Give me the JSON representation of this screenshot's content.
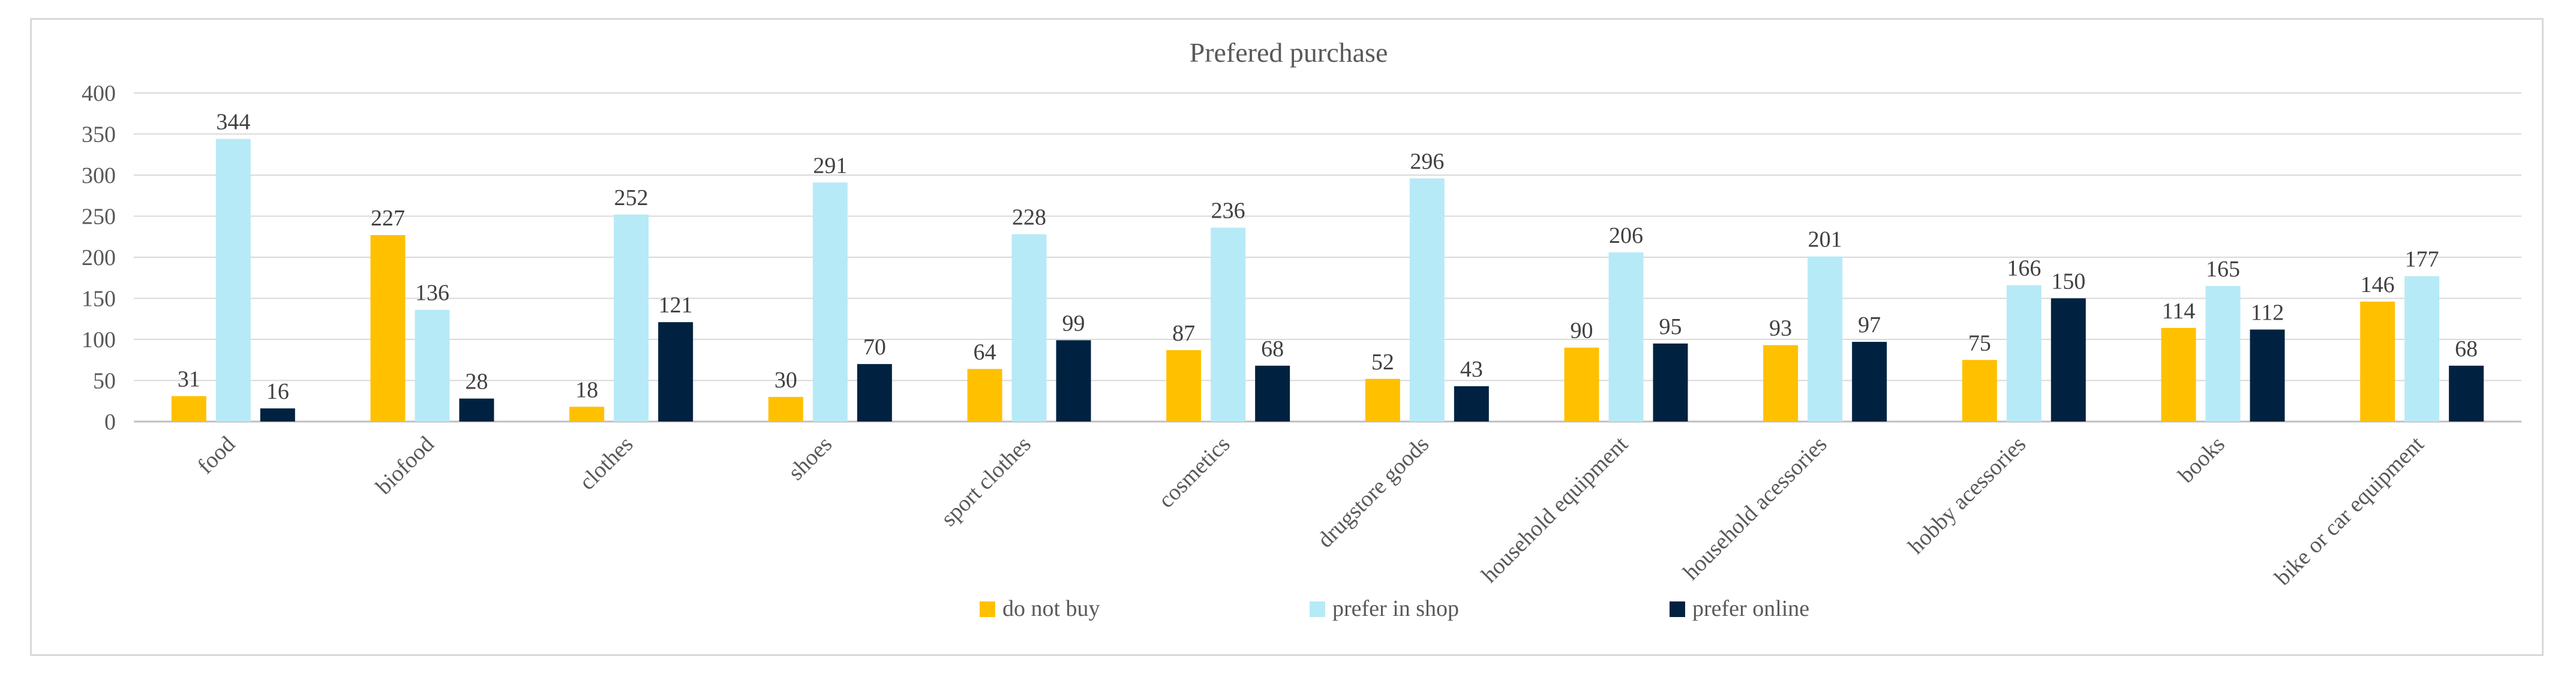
{
  "chart_data": {
    "type": "bar",
    "title": "Prefered purchase",
    "xlabel": "",
    "ylabel": "",
    "ylim": [
      0,
      400
    ],
    "yticks": [
      0,
      50,
      100,
      150,
      200,
      250,
      300,
      350,
      400
    ],
    "grid": true,
    "legend_position": "bottom",
    "categories": [
      "food",
      "biofood",
      "clothes",
      "shoes",
      "sport clothes",
      "cosmetics",
      "drugstore goods",
      "household equipment",
      "household acessories",
      "hobby acessories",
      "books",
      "bike or car equipment"
    ],
    "series": [
      {
        "name": "do not buy",
        "color": "#FFC000",
        "values": [
          31,
          227,
          18,
          30,
          64,
          87,
          52,
          90,
          93,
          75,
          114,
          146
        ]
      },
      {
        "name": "prefer in shop",
        "color": "#B7EAF7",
        "values": [
          344,
          136,
          252,
          291,
          228,
          236,
          296,
          206,
          201,
          166,
          165,
          177
        ]
      },
      {
        "name": "prefer online",
        "color": "#002240",
        "values": [
          16,
          28,
          121,
          70,
          99,
          68,
          43,
          95,
          97,
          150,
          112,
          68
        ]
      }
    ]
  }
}
